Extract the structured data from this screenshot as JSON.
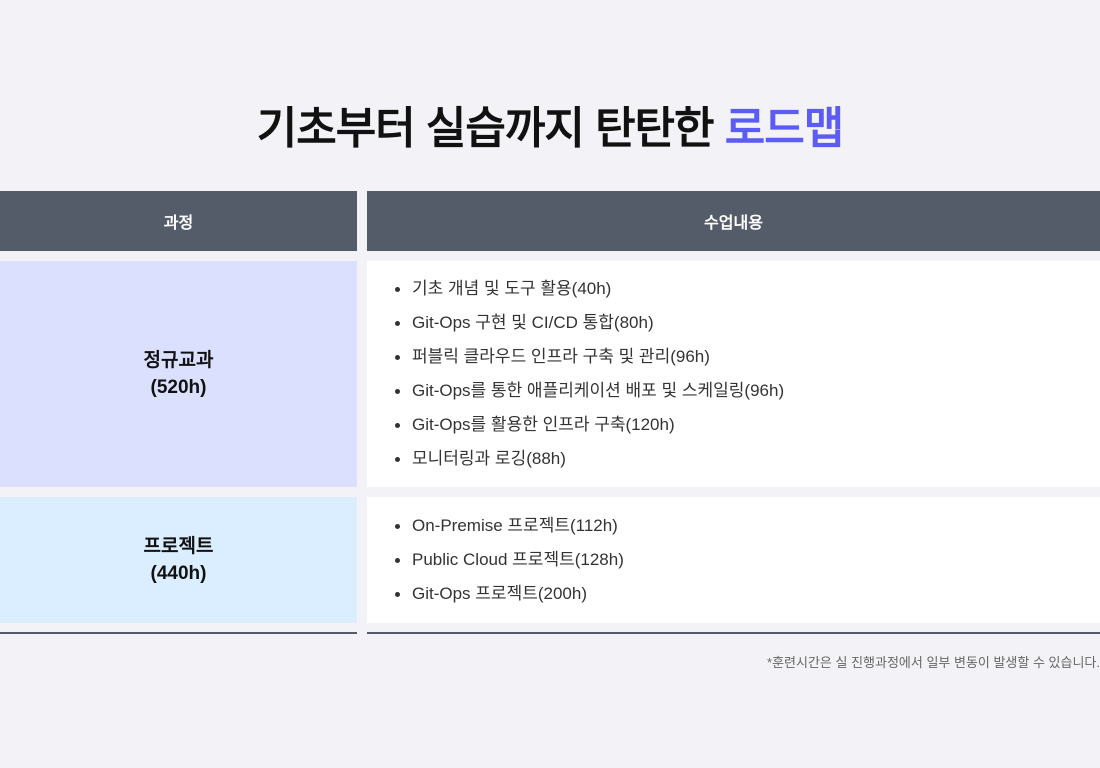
{
  "title": {
    "main": "기초부터 실습까지 탄탄한",
    "accent": "로드맵",
    "accent_color": "#5b5cf6"
  },
  "table": {
    "headers": [
      "과정",
      "수업내용"
    ],
    "rows": [
      {
        "course": "정규교과",
        "hours": "(520h)",
        "bg": "#dbe0ff",
        "items": [
          "기초 개념 및 도구 활용(40h)",
          "Git-Ops 구현 및 CI/CD 통합(80h)",
          "퍼블릭 클라우드 인프라 구축 및 관리(96h)",
          "Git-Ops를 통한 애플리케이션 배포 및 스케일링(96h)",
          "Git-Ops를 활용한 인프라 구축(120h)",
          "모니터링과 로깅(88h)"
        ]
      },
      {
        "course": "프로젝트",
        "hours": "(440h)",
        "bg": "#dbeeff",
        "items": [
          "On-Premise 프로젝트(112h)",
          "Public Cloud 프로젝트(128h)",
          "Git-Ops 프로젝트(200h)"
        ]
      }
    ]
  },
  "footnote": "*훈련시간은 실 진행과정에서 일부 변동이 발생할 수 있습니다."
}
